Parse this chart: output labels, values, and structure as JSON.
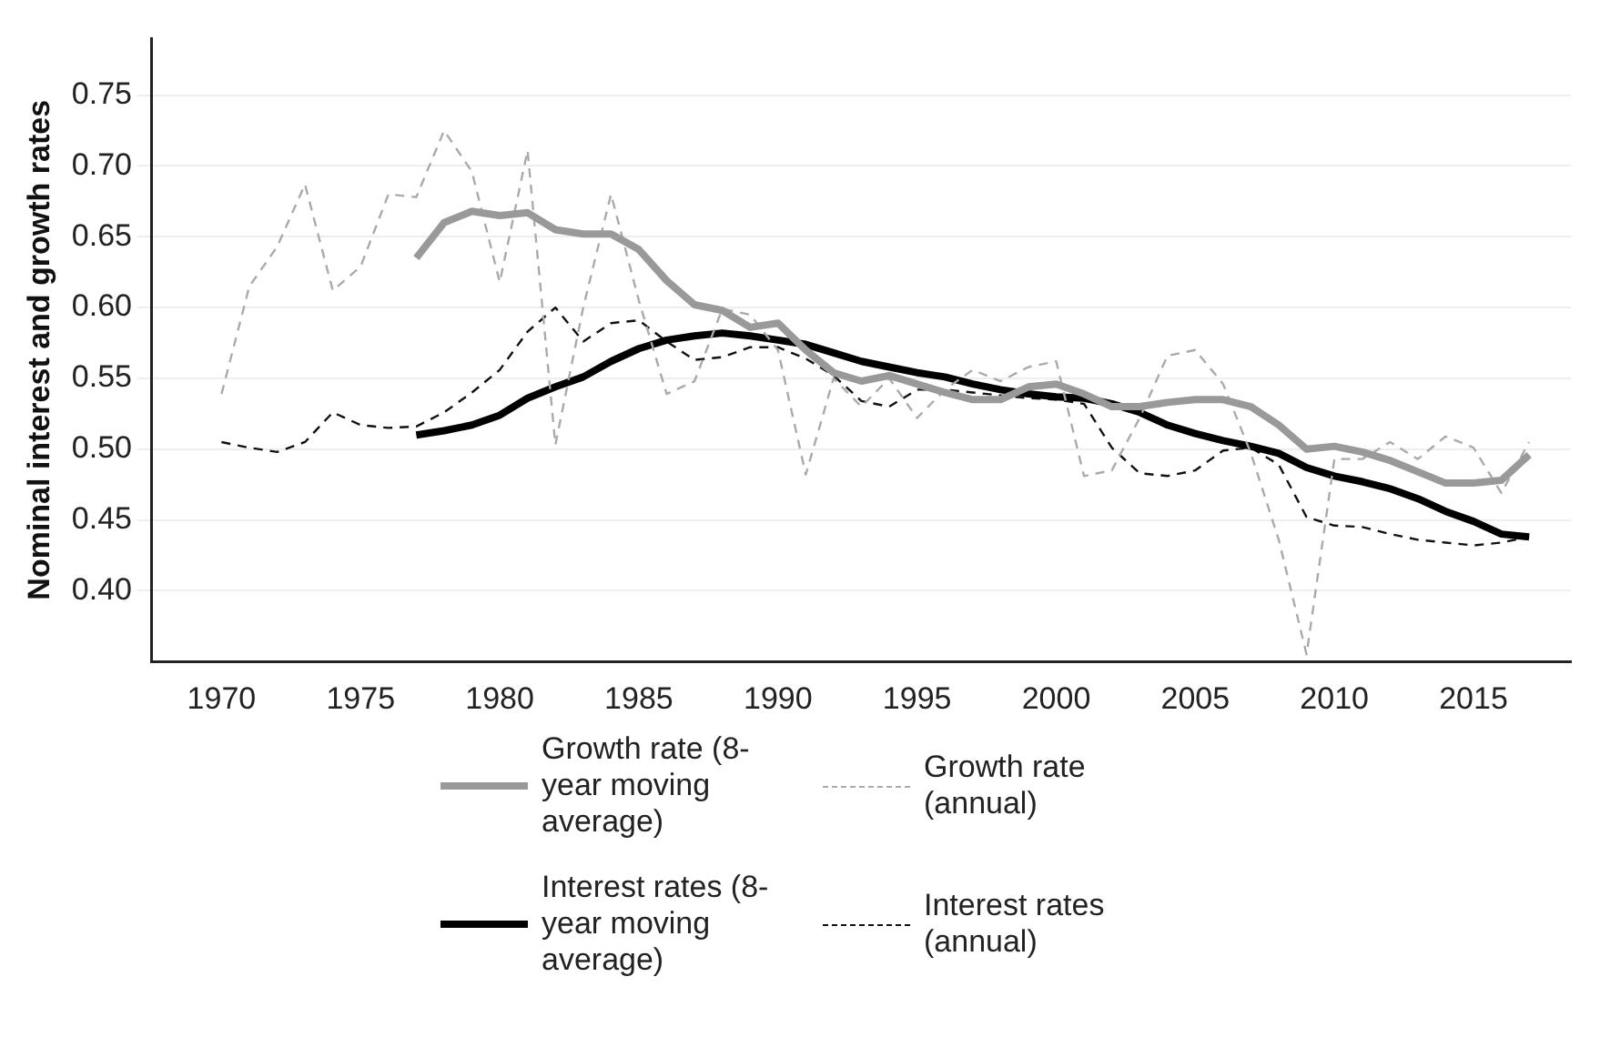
{
  "chart_data": {
    "type": "line",
    "ylabel": "Nominal interest and growth rates",
    "x": [
      1970,
      1971,
      1972,
      1973,
      1974,
      1975,
      1976,
      1977,
      1978,
      1979,
      1980,
      1981,
      1982,
      1983,
      1984,
      1985,
      1986,
      1987,
      1988,
      1989,
      1990,
      1991,
      1992,
      1993,
      1994,
      1995,
      1996,
      1997,
      1998,
      1999,
      2000,
      2001,
      2002,
      2003,
      2004,
      2005,
      2006,
      2007,
      2008,
      2009,
      2010,
      2011,
      2012,
      2013,
      2014,
      2015,
      2016,
      2017
    ],
    "xlim": [
      1967.5,
      2018.5
    ],
    "xticks": [
      1970,
      1975,
      1980,
      1985,
      1990,
      1995,
      2000,
      2005,
      2010,
      2015
    ],
    "ylim": [
      0.35,
      0.79
    ],
    "yticks": [
      {
        "value": 0.4,
        "label": "0.40"
      },
      {
        "value": 0.45,
        "label": "0.45"
      },
      {
        "value": 0.5,
        "label": "0.50"
      },
      {
        "value": 0.55,
        "label": "0.55"
      },
      {
        "value": 0.6,
        "label": "0.60"
      },
      {
        "value": 0.65,
        "label": "0.65"
      },
      {
        "value": 0.7,
        "label": "0.70"
      },
      {
        "value": 0.75,
        "label": "0.75"
      }
    ],
    "grid": "y",
    "legend": "bottom",
    "marker": "none",
    "series": [
      {
        "name": "Growth rate (8-year moving average)",
        "color": "#999999",
        "line_style": "solid",
        "values": [
          null,
          null,
          null,
          null,
          null,
          null,
          null,
          0.635,
          0.66,
          0.668,
          0.665,
          0.667,
          0.655,
          0.652,
          0.652,
          0.641,
          0.619,
          0.602,
          0.598,
          0.586,
          0.589,
          0.57,
          0.554,
          0.548,
          0.552,
          0.546,
          0.54,
          0.535,
          0.535,
          0.544,
          0.546,
          0.539,
          0.53,
          0.53,
          0.533,
          0.535,
          0.535,
          0.53,
          0.517,
          0.5,
          0.502,
          0.498,
          0.492,
          0.484,
          0.476,
          0.476,
          0.478,
          0.496
        ]
      },
      {
        "name": "Growth rate (annual)",
        "color": "#aaaaaa",
        "line_style": "dashed",
        "values": [
          0.539,
          0.615,
          0.643,
          0.687,
          0.612,
          0.629,
          0.68,
          0.678,
          0.725,
          0.696,
          0.618,
          0.711,
          0.503,
          0.6,
          0.68,
          0.605,
          0.539,
          0.548,
          0.599,
          0.595,
          0.57,
          0.482,
          0.55,
          0.53,
          0.55,
          0.522,
          0.542,
          0.556,
          0.548,
          0.558,
          0.562,
          0.481,
          0.485,
          0.522,
          0.566,
          0.57,
          0.546,
          0.497,
          0.436,
          0.355,
          0.493,
          0.493,
          0.505,
          0.493,
          0.509,
          0.501,
          0.469,
          0.505
        ]
      },
      {
        "name": "Interest rates (8-year moving average)",
        "color": "#000000",
        "line_style": "solid",
        "values": [
          null,
          null,
          null,
          null,
          null,
          null,
          null,
          0.51,
          0.513,
          0.517,
          0.524,
          0.536,
          0.544,
          0.551,
          0.562,
          0.571,
          0.577,
          0.58,
          0.582,
          0.58,
          0.577,
          0.574,
          0.568,
          0.562,
          0.558,
          0.554,
          0.551,
          0.546,
          0.542,
          0.539,
          0.537,
          0.536,
          0.532,
          0.526,
          0.517,
          0.511,
          0.506,
          0.502,
          0.497,
          0.487,
          0.481,
          0.477,
          0.472,
          0.465,
          0.456,
          0.449,
          0.44,
          0.438
        ]
      },
      {
        "name": "Interest rates (annual)",
        "color": "#111111",
        "line_style": "dashed",
        "values": [
          0.505,
          0.501,
          0.498,
          0.505,
          0.526,
          0.517,
          0.515,
          0.516,
          0.526,
          0.54,
          0.556,
          0.583,
          0.6,
          0.576,
          0.589,
          0.591,
          0.576,
          0.563,
          0.565,
          0.572,
          0.572,
          0.564,
          0.552,
          0.534,
          0.53,
          0.542,
          0.542,
          0.54,
          0.538,
          0.536,
          0.535,
          0.532,
          0.501,
          0.483,
          0.481,
          0.485,
          0.499,
          0.501,
          0.489,
          0.452,
          0.446,
          0.445,
          0.44,
          0.436,
          0.434,
          0.432,
          0.434,
          0.438
        ]
      }
    ]
  }
}
